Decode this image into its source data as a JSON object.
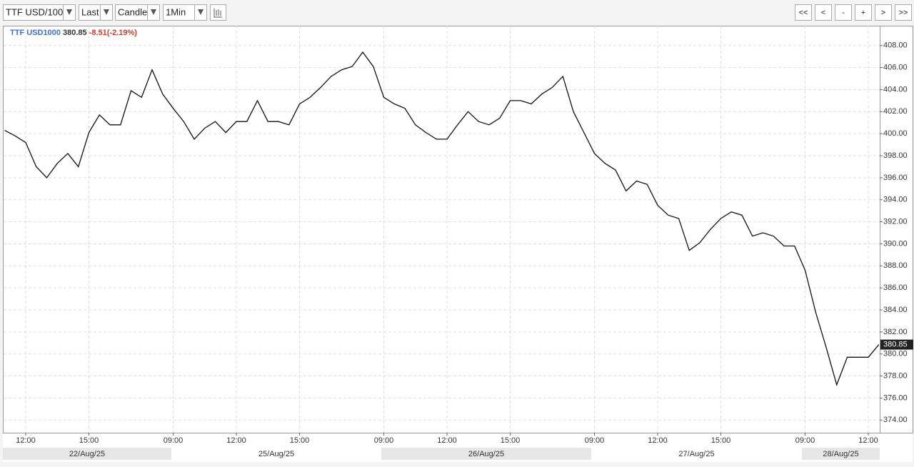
{
  "toolbar": {
    "symbol": "TTF USD/100",
    "price_field": "Last",
    "style": "Candle",
    "interval": "1Min",
    "nav_buttons": [
      "<<",
      "<",
      "-",
      "+",
      ">",
      ">>"
    ]
  },
  "chart_data": {
    "type": "line",
    "name": "TTF USD1000",
    "last": 380.85,
    "change_label": "-8.51(-2.19%)",
    "color": "#111111",
    "grid": true,
    "categories": [
      null,
      null,
      "12:00",
      null,
      null,
      null,
      null,
      null,
      "15:00",
      null,
      null,
      null,
      null,
      null,
      null,
      null,
      "09:00",
      null,
      null,
      null,
      null,
      null,
      "12:00",
      null,
      null,
      null,
      null,
      null,
      "15:00",
      null,
      null,
      null,
      null,
      null,
      null,
      null,
      "09:00",
      null,
      null,
      null,
      null,
      null,
      "12:00",
      null,
      null,
      null,
      null,
      null,
      "15:00",
      null,
      null,
      null,
      null,
      null,
      null,
      null,
      "09:00",
      null,
      null,
      null,
      null,
      null,
      "12:00",
      null,
      null,
      null,
      null,
      null,
      "15:00",
      null,
      null,
      null,
      null,
      null,
      null,
      null,
      "09:00",
      null,
      null,
      null,
      null,
      null,
      "12:00",
      null
    ],
    "values": [
      400.3,
      399.8,
      399.2,
      397.0,
      396.0,
      397.3,
      398.2,
      397.0,
      400.1,
      401.7,
      400.8,
      400.8,
      403.9,
      403.3,
      405.8,
      403.6,
      402.3,
      401.1,
      399.5,
      400.5,
      401.1,
      400.1,
      401.1,
      401.1,
      403.0,
      401.1,
      401.1,
      400.8,
      402.7,
      403.3,
      404.2,
      405.2,
      405.8,
      406.1,
      407.4,
      406.1,
      403.3,
      402.7,
      402.3,
      400.8,
      400.1,
      399.5,
      399.5,
      400.8,
      402.0,
      401.1,
      400.8,
      401.4,
      403.0,
      403.0,
      402.7,
      403.6,
      404.2,
      405.2,
      402.0,
      400.1,
      398.2,
      397.3,
      396.7,
      394.8,
      395.7,
      395.4,
      393.5,
      392.6,
      392.3,
      389.4,
      390.1,
      391.3,
      392.3,
      392.9,
      392.6,
      390.7,
      391.0,
      390.7,
      389.8,
      389.8,
      387.6,
      383.8,
      380.6,
      377.2,
      379.7,
      379.7,
      379.7,
      380.85
    ],
    "date_labels": [
      "22/Aug/25",
      "25/Aug/25",
      "26/Aug/25",
      "27/Aug/25",
      "28/Aug/25"
    ],
    "ylim": [
      372.85,
      409.8
    ],
    "yticks": [
      {
        "value": 374,
        "label": "374.00"
      },
      {
        "value": 376,
        "label": "376.00"
      },
      {
        "value": 378,
        "label": "378.00"
      },
      {
        "value": 380,
        "label": "380.00"
      },
      {
        "value": 382,
        "label": "382.00"
      },
      {
        "value": 384,
        "label": "384.00"
      },
      {
        "value": 386,
        "label": "386.00"
      },
      {
        "value": 388,
        "label": "388.00"
      },
      {
        "value": 390,
        "label": "390.00"
      },
      {
        "value": 392,
        "label": "392.00"
      },
      {
        "value": 394,
        "label": "394.00"
      },
      {
        "value": 396,
        "label": "396.00"
      },
      {
        "value": 398,
        "label": "398.00"
      },
      {
        "value": 400,
        "label": "400.00"
      },
      {
        "value": 402,
        "label": "402.00"
      },
      {
        "value": 404,
        "label": "404.00"
      },
      {
        "value": 406,
        "label": "406.00"
      },
      {
        "value": 408,
        "label": "408.00"
      }
    ]
  }
}
